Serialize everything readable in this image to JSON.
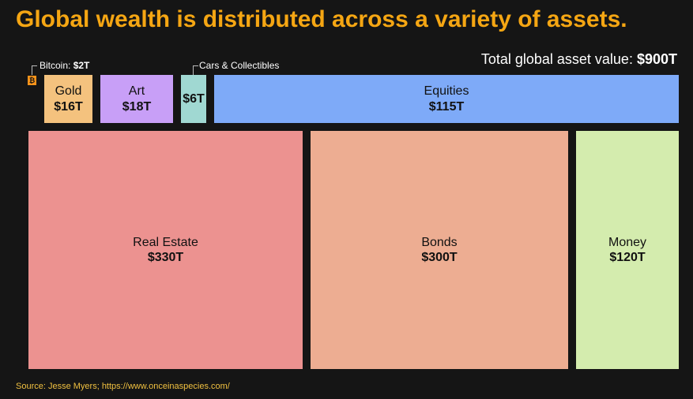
{
  "title": "Global wealth is distributed across a variety of assets.",
  "total": {
    "label": "Total global asset value: ",
    "value": "$900T"
  },
  "callouts": {
    "bitcoin_label": "Bitcoin: ",
    "bitcoin_value": "$2T",
    "bitcoin_icon": "₿",
    "cars_label": "Cars & Collectibles"
  },
  "source": "Source: Jesse Myers; https://www.onceinaspecies.com/",
  "colors": {
    "bitcoin": "#f7931a",
    "gold": "#f4c27e",
    "art": "#c89ff7",
    "cars": "#a0d8d2",
    "equities": "#7eaaf8",
    "real_estate": "#ec9290",
    "bonds": "#edad92",
    "money": "#d4ecae",
    "title": "#f5a613"
  },
  "chart_data": {
    "type": "treemap",
    "title": "Global wealth is distributed across a variety of assets.",
    "unit": "$T",
    "total": 900,
    "items": [
      {
        "name": "Bitcoin",
        "value": 2,
        "label": "$2T"
      },
      {
        "name": "Gold",
        "value": 16,
        "label": "$16T"
      },
      {
        "name": "Art",
        "value": 18,
        "label": "$18T"
      },
      {
        "name": "Cars & Collectibles",
        "value": 6,
        "label": "$6T"
      },
      {
        "name": "Equities",
        "value": 115,
        "label": "$115T"
      },
      {
        "name": "Real Estate",
        "value": 330,
        "label": "$330T"
      },
      {
        "name": "Bonds",
        "value": 300,
        "label": "$300T"
      },
      {
        "name": "Money",
        "value": 120,
        "label": "$120T"
      }
    ]
  }
}
